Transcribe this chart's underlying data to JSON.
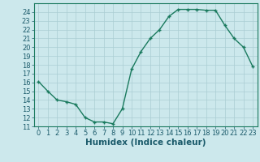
{
  "x": [
    0,
    1,
    2,
    3,
    4,
    5,
    6,
    7,
    8,
    9,
    10,
    11,
    12,
    13,
    14,
    15,
    16,
    17,
    18,
    19,
    20,
    21,
    22,
    23
  ],
  "y": [
    16.1,
    15.0,
    14.0,
    13.8,
    13.5,
    12.0,
    11.5,
    11.5,
    11.3,
    13.0,
    17.5,
    19.5,
    21.0,
    22.0,
    23.5,
    24.3,
    24.3,
    24.3,
    24.2,
    24.2,
    22.5,
    21.0,
    20.0,
    17.8
  ],
  "line_color": "#1a7a5e",
  "marker": "+",
  "marker_size": 3.5,
  "line_width": 1.0,
  "bg_color": "#cce8ec",
  "grid_color": "#aacdd3",
  "xlabel": "Humidex (Indice chaleur)",
  "xlim": [
    -0.5,
    23.5
  ],
  "ylim": [
    11,
    25
  ],
  "yticks": [
    11,
    12,
    13,
    14,
    15,
    16,
    17,
    18,
    19,
    20,
    21,
    22,
    23,
    24
  ],
  "xticks": [
    0,
    1,
    2,
    3,
    4,
    5,
    6,
    7,
    8,
    9,
    10,
    11,
    12,
    13,
    14,
    15,
    16,
    17,
    18,
    19,
    20,
    21,
    22,
    23
  ],
  "xlabel_fontsize": 7.5,
  "tick_fontsize": 6.0,
  "tick_color": "#1a5a6a",
  "spine_color": "#1a7a5e"
}
